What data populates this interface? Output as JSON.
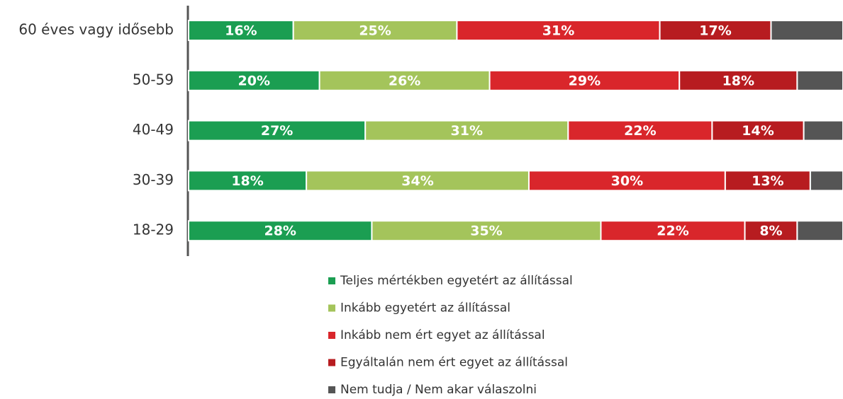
{
  "chart_data": {
    "type": "stacked_bar_horizontal",
    "categories": [
      "60 éves vagy idősebb",
      "50-59",
      "40-49",
      "30-39",
      "18-29"
    ],
    "xlim": [
      0,
      100
    ],
    "series": [
      {
        "name": "Teljes mértékben egyetért az állítással",
        "color": "#1b9e52",
        "values": [
          16,
          20,
          27,
          18,
          28
        ],
        "value_labels": [
          "16%",
          "20%",
          "27%",
          "18%",
          "28%"
        ]
      },
      {
        "name": "Inkább egyetért az állítással",
        "color": "#a4c45b",
        "values": [
          25,
          26,
          31,
          34,
          35
        ],
        "value_labels": [
          "25%",
          "26%",
          "31%",
          "34%",
          "35%"
        ]
      },
      {
        "name": "Inkább nem ért egyet az állítással",
        "color": "#d9262b",
        "values": [
          31,
          29,
          22,
          30,
          22
        ],
        "value_labels": [
          "31%",
          "29%",
          "22%",
          "30%",
          "22%"
        ]
      },
      {
        "name": "Egyáltalán nem ért egyet az állítással",
        "color": "#b71c20",
        "values": [
          17,
          18,
          14,
          13,
          8
        ],
        "value_labels": [
          "17%",
          "18%",
          "14%",
          "13%",
          "8%"
        ]
      },
      {
        "name": "Nem tudja / Nem akar válaszolni",
        "color": "#555555",
        "values": [
          11,
          7,
          6,
          5,
          7
        ]
      }
    ]
  }
}
